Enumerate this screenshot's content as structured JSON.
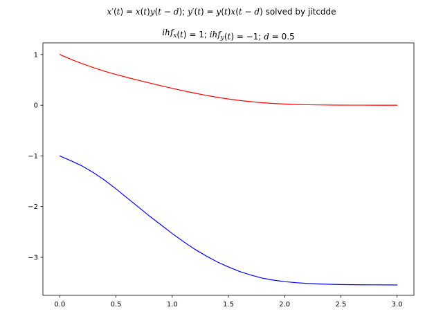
{
  "chart_data": {
    "type": "line",
    "title": "x′(t) = x(t)y(t − d); y′(t) = y(t)x(t − d) solved by jitcdde",
    "title_parts": [
      {
        "text": "x",
        "italic": true
      },
      {
        "text": "′(",
        "italic": false
      },
      {
        "text": "t",
        "italic": true
      },
      {
        "text": ") = ",
        "italic": false
      },
      {
        "text": "x",
        "italic": true
      },
      {
        "text": "(",
        "italic": false
      },
      {
        "text": "t",
        "italic": true
      },
      {
        "text": ")",
        "italic": false
      },
      {
        "text": "y",
        "italic": true
      },
      {
        "text": "(",
        "italic": false
      },
      {
        "text": "t",
        "italic": true
      },
      {
        "text": " − ",
        "italic": false
      },
      {
        "text": "d",
        "italic": true
      },
      {
        "text": "); ",
        "italic": false
      },
      {
        "text": "y",
        "italic": true
      },
      {
        "text": "′(",
        "italic": false
      },
      {
        "text": "t",
        "italic": true
      },
      {
        "text": ") = ",
        "italic": false
      },
      {
        "text": "y",
        "italic": true
      },
      {
        "text": "(",
        "italic": false
      },
      {
        "text": "t",
        "italic": true
      },
      {
        "text": ")",
        "italic": false
      },
      {
        "text": "x",
        "italic": true
      },
      {
        "text": "(",
        "italic": false
      },
      {
        "text": "t",
        "italic": true
      },
      {
        "text": " − ",
        "italic": false
      },
      {
        "text": "d",
        "italic": true
      },
      {
        "text": ") solved by jitcdde",
        "italic": false
      }
    ],
    "subtitle": "ihf_x(t) = 1; ihf_y(t) = −1; d = 0.5",
    "subtitle_parts": [
      {
        "text": "ihf",
        "italic": true,
        "sub": false
      },
      {
        "text": "x",
        "italic": true,
        "sub": true
      },
      {
        "text": "(",
        "italic": false,
        "sub": false
      },
      {
        "text": "t",
        "italic": true,
        "sub": false
      },
      {
        "text": ") = 1; ",
        "italic": false,
        "sub": false
      },
      {
        "text": "ihf",
        "italic": true,
        "sub": false
      },
      {
        "text": "y",
        "italic": true,
        "sub": true
      },
      {
        "text": "(",
        "italic": false,
        "sub": false
      },
      {
        "text": "t",
        "italic": true,
        "sub": false
      },
      {
        "text": ") = −1; ",
        "italic": false,
        "sub": false
      },
      {
        "text": "d",
        "italic": true,
        "sub": false
      },
      {
        "text": " = 0.5",
        "italic": false,
        "sub": false
      }
    ],
    "xlabel": "",
    "ylabel": "",
    "xlim": [
      -0.15,
      3.15
    ],
    "ylim": [
      -3.75,
      1.23
    ],
    "xticks": [
      0.0,
      0.5,
      1.0,
      1.5,
      2.0,
      2.5,
      3.0
    ],
    "xtick_labels": [
      "0.0",
      "0.5",
      "1.0",
      "1.5",
      "2.0",
      "2.5",
      "3.0"
    ],
    "yticks": [
      1,
      0,
      -1,
      -2,
      -3
    ],
    "ytick_labels": [
      "1",
      "0",
      "−1",
      "−2",
      "−3"
    ],
    "grid": false,
    "legend": "none",
    "series": [
      {
        "color": "#ff0000",
        "x": [
          0.0,
          0.1,
          0.2,
          0.3,
          0.4,
          0.5,
          0.6,
          0.7,
          0.8,
          0.9,
          1.0,
          1.1,
          1.2,
          1.3,
          1.4,
          1.5,
          1.6,
          1.7,
          1.8,
          1.9,
          2.0,
          2.1,
          2.2,
          2.3,
          2.4,
          2.5,
          2.6,
          2.7,
          2.8,
          2.9,
          3.0
        ],
        "y": [
          1.0,
          0.905,
          0.819,
          0.741,
          0.67,
          0.607,
          0.548,
          0.492,
          0.438,
          0.385,
          0.334,
          0.285,
          0.239,
          0.196,
          0.157,
          0.123,
          0.094,
          0.07,
          0.05,
          0.035,
          0.024,
          0.016,
          0.01,
          0.006,
          0.004,
          0.002,
          0.001,
          0.001,
          0.0,
          0.0,
          0.0
        ]
      },
      {
        "color": "#0000ff",
        "x": [
          0.0,
          0.1,
          0.2,
          0.3,
          0.4,
          0.5,
          0.6,
          0.7,
          0.8,
          0.9,
          1.0,
          1.1,
          1.2,
          1.3,
          1.4,
          1.5,
          1.6,
          1.7,
          1.8,
          1.9,
          2.0,
          2.1,
          2.2,
          2.3,
          2.4,
          2.5,
          2.6,
          2.7,
          2.8,
          2.9,
          3.0
        ],
        "y": [
          -1.0,
          -1.095,
          -1.2,
          -1.33,
          -1.48,
          -1.65,
          -1.83,
          -2.01,
          -2.19,
          -2.36,
          -2.53,
          -2.69,
          -2.84,
          -2.97,
          -3.09,
          -3.19,
          -3.28,
          -3.35,
          -3.41,
          -3.45,
          -3.48,
          -3.5,
          -3.515,
          -3.525,
          -3.532,
          -3.537,
          -3.54,
          -3.542,
          -3.543,
          -3.544,
          -3.545
        ]
      }
    ]
  }
}
